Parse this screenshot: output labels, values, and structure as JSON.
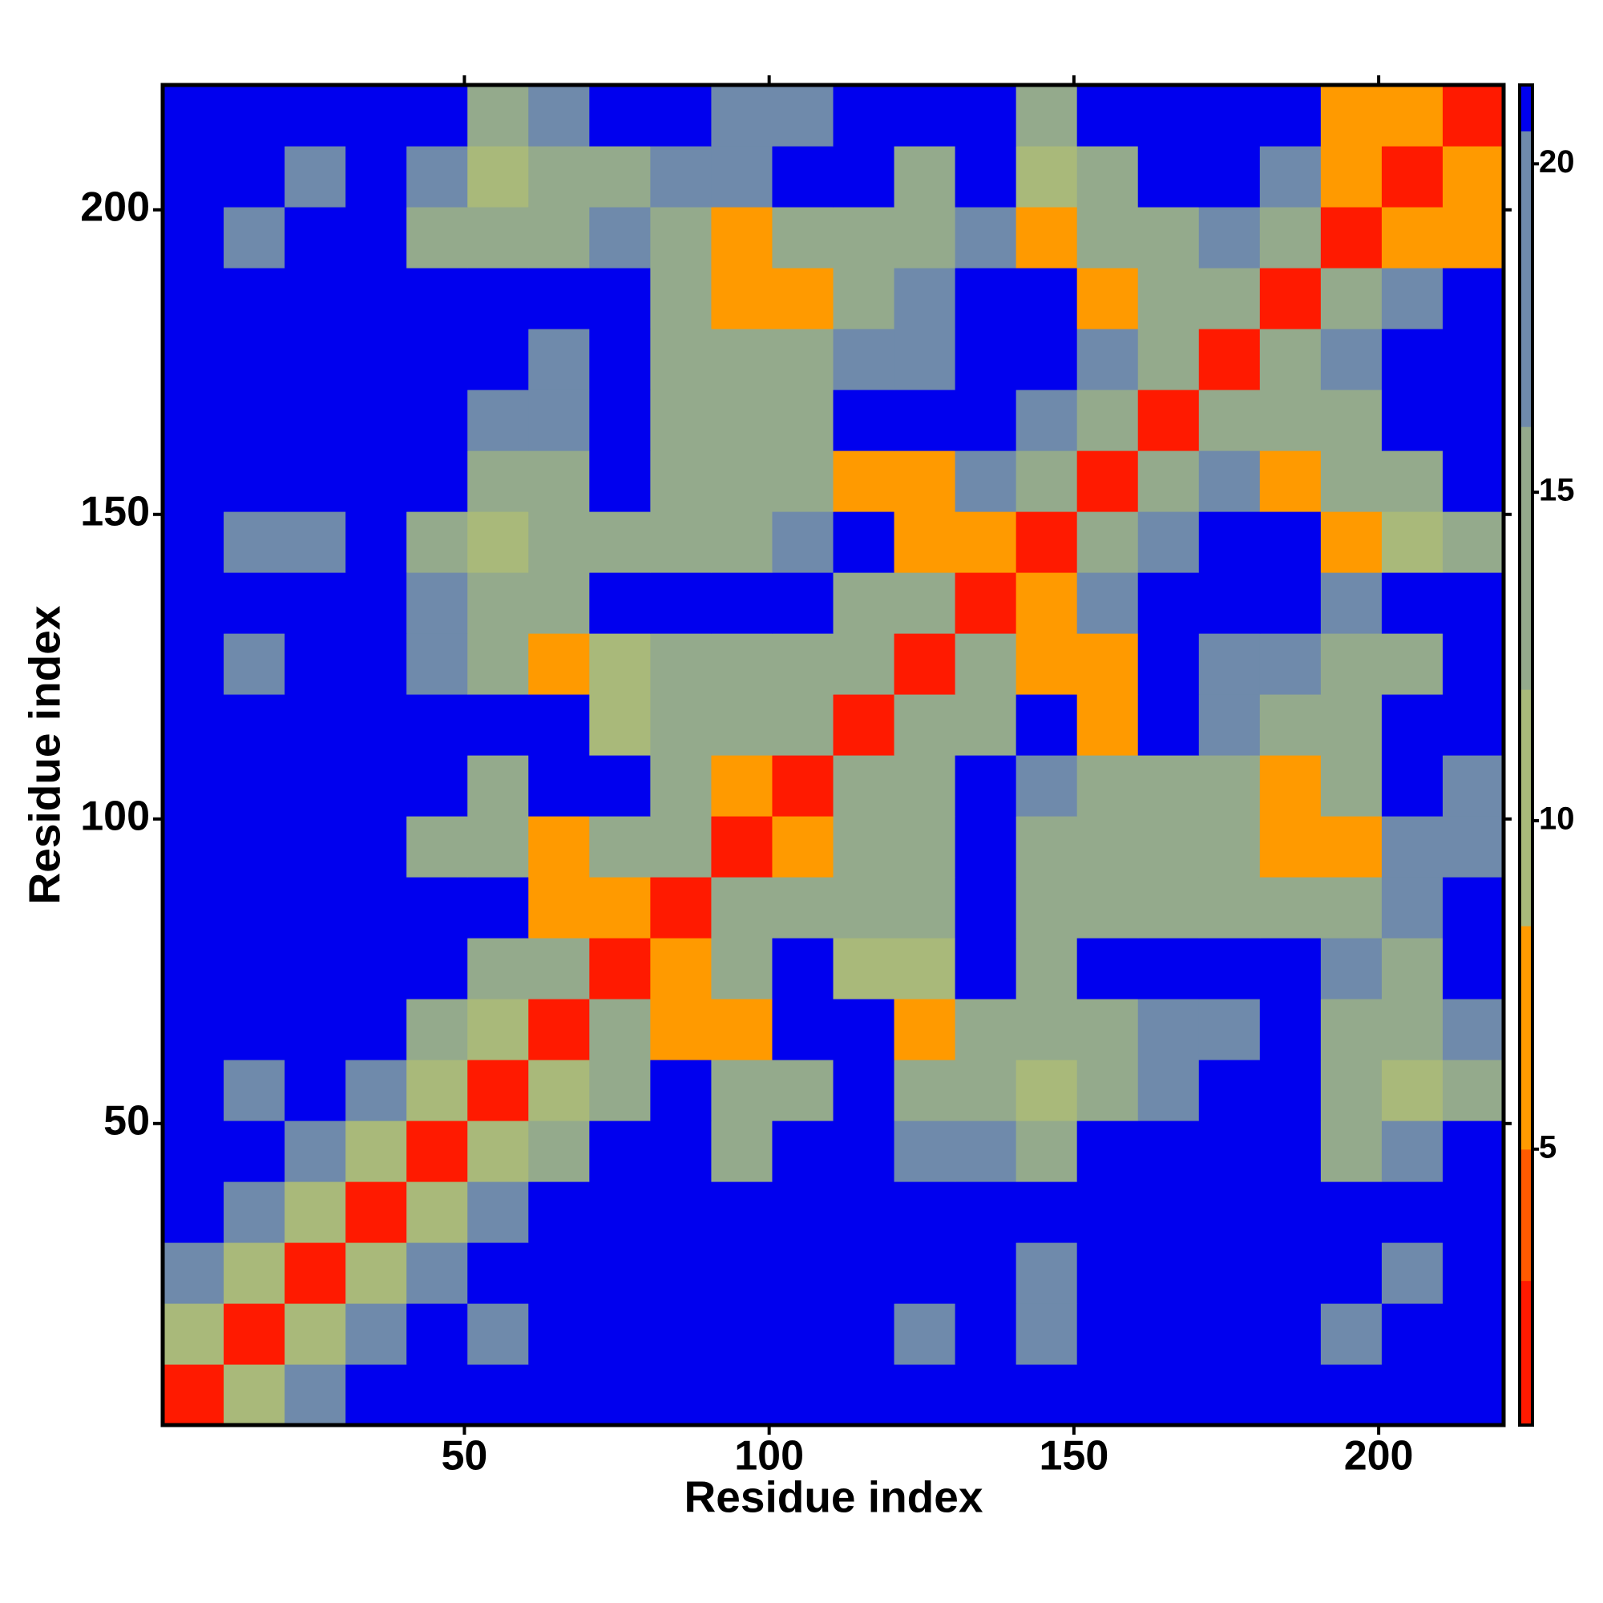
{
  "chart_data": {
    "type": "heatmap",
    "x_label": "Residue index",
    "y_label": "Residue index",
    "x": [
      5.5,
      15.5,
      25.5,
      35.5,
      45.5,
      55.5,
      65.5,
      75.5,
      85.5,
      95.5,
      105.5,
      115.5,
      125.5,
      135.5,
      145.5,
      155.5,
      165.5,
      175.5,
      185.5,
      195.5,
      205.5,
      215.5
    ],
    "y": [
      5.5,
      15.5,
      25.5,
      35.5,
      45.5,
      55.5,
      65.5,
      75.5,
      85.5,
      95.5,
      105.5,
      115.5,
      125.5,
      135.5,
      145.5,
      155.5,
      165.5,
      175.5,
      185.5,
      195.5,
      205.5,
      215.5
    ],
    "z": [
      [
        2,
        9,
        17,
        21,
        21,
        21,
        21,
        21,
        21,
        21,
        21,
        21,
        21,
        21,
        21,
        21,
        21,
        21,
        21,
        21,
        21,
        21
      ],
      [
        9,
        2,
        9,
        17,
        21,
        19,
        21,
        21,
        21,
        21,
        21,
        21,
        19,
        21,
        19,
        21,
        21,
        21,
        21,
        19,
        21,
        21
      ],
      [
        17,
        9,
        2,
        9,
        17,
        21,
        21,
        21,
        21,
        21,
        21,
        21,
        21,
        21,
        19,
        21,
        21,
        21,
        21,
        21,
        19,
        21
      ],
      [
        21,
        17,
        9,
        2,
        9,
        17,
        21,
        21,
        21,
        21,
        21,
        21,
        21,
        21,
        21,
        21,
        21,
        21,
        21,
        21,
        21,
        21
      ],
      [
        21,
        21,
        17,
        9,
        2,
        9,
        15,
        21,
        21,
        15,
        21,
        21,
        17,
        18,
        15,
        21,
        21,
        21,
        21,
        15,
        16,
        21
      ],
      [
        21,
        19,
        21,
        17,
        9,
        2,
        9,
        14,
        21,
        13,
        14,
        21,
        14,
        15,
        11,
        15,
        17,
        21,
        21,
        12,
        9,
        15
      ],
      [
        21,
        21,
        21,
        21,
        15,
        9,
        2,
        13,
        7,
        7,
        21,
        21,
        7,
        12,
        14,
        14,
        16,
        17,
        21,
        15,
        14,
        16
      ],
      [
        21,
        21,
        21,
        21,
        21,
        14,
        13,
        2,
        6,
        12,
        21,
        11,
        9,
        21,
        15,
        21,
        21,
        21,
        21,
        16,
        15,
        21
      ],
      [
        21,
        21,
        21,
        21,
        21,
        21,
        7,
        6,
        2,
        13,
        14,
        14,
        14,
        21,
        15,
        15,
        15,
        15,
        15,
        15,
        16,
        21
      ],
      [
        21,
        21,
        21,
        21,
        15,
        13,
        7,
        12,
        13,
        2,
        7,
        13,
        15,
        21,
        14,
        14,
        12,
        13,
        8,
        8,
        16,
        16
      ],
      [
        21,
        21,
        21,
        21,
        21,
        14,
        21,
        21,
        14,
        7,
        2,
        13,
        14,
        21,
        19,
        14,
        14,
        15,
        8,
        15,
        21,
        16
      ],
      [
        21,
        21,
        21,
        21,
        21,
        21,
        21,
        11,
        14,
        13,
        13,
        2,
        13,
        15,
        21,
        8,
        21,
        17,
        15,
        14,
        21,
        21
      ],
      [
        21,
        19,
        21,
        21,
        17,
        14,
        7,
        9,
        14,
        15,
        14,
        13,
        2,
        13,
        7,
        7,
        21,
        16,
        16,
        13,
        15,
        21
      ],
      [
        21,
        21,
        21,
        21,
        18,
        15,
        12,
        21,
        21,
        21,
        21,
        15,
        13,
        2,
        8,
        16,
        21,
        21,
        21,
        16,
        21,
        21
      ],
      [
        21,
        19,
        19,
        21,
        15,
        11,
        14,
        15,
        15,
        14,
        19,
        21,
        7,
        8,
        2,
        13,
        16,
        21,
        21,
        7,
        9,
        15
      ],
      [
        21,
        21,
        21,
        21,
        21,
        15,
        14,
        21,
        15,
        14,
        14,
        8,
        7,
        16,
        13,
        2,
        13,
        16,
        7,
        12,
        15,
        21
      ],
      [
        21,
        21,
        21,
        21,
        21,
        17,
        16,
        21,
        15,
        12,
        14,
        21,
        21,
        21,
        16,
        13,
        2,
        13,
        12,
        14,
        21,
        21
      ],
      [
        21,
        21,
        21,
        21,
        21,
        21,
        17,
        21,
        15,
        13,
        15,
        17,
        16,
        21,
        21,
        16,
        13,
        2,
        13,
        16,
        21,
        21
      ],
      [
        21,
        21,
        21,
        21,
        21,
        21,
        21,
        21,
        15,
        8,
        8,
        15,
        16,
        21,
        21,
        7,
        12,
        13,
        2,
        13,
        16,
        21
      ],
      [
        21,
        19,
        21,
        21,
        15,
        12,
        15,
        16,
        15,
        8,
        15,
        14,
        13,
        16,
        7,
        12,
        14,
        16,
        13,
        2,
        8,
        8
      ],
      [
        21,
        21,
        19,
        21,
        16,
        9,
        14,
        15,
        16,
        16,
        21,
        21,
        15,
        21,
        9,
        15,
        21,
        21,
        16,
        8,
        2,
        8
      ],
      [
        21,
        21,
        21,
        21,
        21,
        15,
        16,
        21,
        21,
        16,
        16,
        21,
        21,
        21,
        15,
        21,
        21,
        21,
        21,
        8,
        8,
        2
      ]
    ],
    "xlim": [
      0.5,
      220.5
    ],
    "ylim": [
      0.5,
      220.5
    ],
    "xticks": [
      50,
      100,
      150,
      200
    ],
    "yticks": [
      50,
      100,
      150,
      200
    ],
    "colorscale": [
      {
        "value": 3,
        "color": "#ff1a00"
      },
      {
        "value": 5,
        "color": "#ff5a00"
      },
      {
        "value": 8.4,
        "color": "#ff9a00"
      },
      {
        "value": 12,
        "color": "#a9b97a"
      },
      {
        "value": 16,
        "color": "#94aa8c"
      },
      {
        "value": 20.5,
        "color": "#6f8aab"
      },
      {
        "value": 21.2,
        "color": "#0000ee"
      }
    ],
    "colorbar_lim": [
      0.8,
      21.2
    ],
    "colorbar_ticks": [
      5,
      10,
      15,
      20
    ]
  }
}
